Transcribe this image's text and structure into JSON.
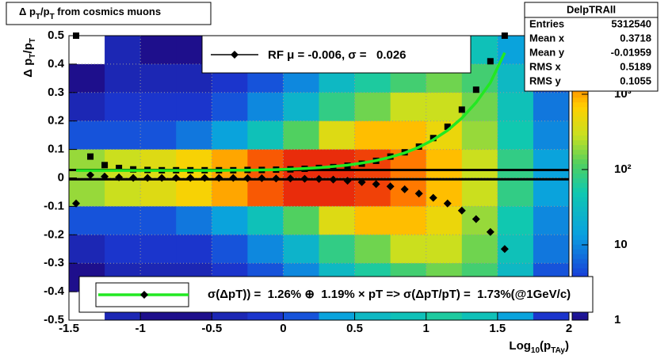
{
  "chart_data": {
    "type": "histogram2d",
    "title": [
      "Δ p",
      "T",
      "/p",
      "T",
      " from cosmics muons"
    ],
    "ylabel": [
      "Δ p",
      "T",
      "/p",
      "T"
    ],
    "xlabel": [
      "Log",
      "10",
      "(p",
      "TAy",
      ")"
    ],
    "xlim": [
      -1.5,
      2
    ],
    "ylim": [
      -0.5,
      0.5
    ],
    "xticks": [
      -1.5,
      -1,
      -0.5,
      0,
      0.5,
      1,
      1.5,
      2
    ],
    "yticks": [
      -0.5,
      -0.4,
      -0.3,
      -0.2,
      -0.1,
      0,
      0.1,
      0.2,
      0.3,
      0.4,
      0.5
    ],
    "grid": true,
    "xbins": [
      -1.5,
      -1.25,
      -1,
      -0.75,
      -0.5,
      -0.25,
      0,
      0.25,
      0.5,
      0.75,
      1,
      1.25,
      1.5,
      1.75,
      2
    ],
    "ybins": [
      -0.5,
      -0.4,
      -0.3,
      -0.2,
      -0.1,
      0,
      0.1,
      0.2,
      0.3,
      0.4,
      0.5
    ],
    "z": [
      [
        0,
        2,
        1,
        1,
        2,
        3,
        5,
        15,
        30,
        40,
        60,
        40,
        15,
        3
      ],
      [
        1,
        2,
        2,
        2,
        3,
        5,
        10,
        30,
        60,
        100,
        150,
        100,
        30,
        5
      ],
      [
        2,
        3,
        3,
        3,
        5,
        10,
        25,
        80,
        150,
        300,
        300,
        150,
        40,
        8
      ],
      [
        5,
        5,
        5,
        8,
        15,
        40,
        120,
        400,
        800,
        800,
        500,
        200,
        50,
        10
      ],
      [
        200,
        300,
        400,
        600,
        1000,
        2000,
        3000,
        3000,
        2500,
        1500,
        800,
        300,
        80,
        15
      ],
      [
        200,
        300,
        400,
        600,
        1000,
        2000,
        3000,
        3000,
        2500,
        1500,
        800,
        300,
        80,
        15
      ],
      [
        5,
        5,
        5,
        8,
        15,
        40,
        120,
        400,
        800,
        800,
        500,
        200,
        50,
        10
      ],
      [
        2,
        3,
        3,
        3,
        5,
        10,
        25,
        80,
        150,
        300,
        300,
        150,
        40,
        8
      ],
      [
        1,
        2,
        2,
        2,
        3,
        5,
        10,
        30,
        60,
        100,
        150,
        100,
        30,
        5
      ],
      [
        0,
        2,
        1,
        1,
        2,
        3,
        5,
        15,
        30,
        40,
        60,
        40,
        15,
        3
      ]
    ],
    "zlim": [
      1,
      6000
    ],
    "log_z": true,
    "zticks": [
      1,
      10,
      {
        "value": 100,
        "label": "10²"
      },
      {
        "value": 1000,
        "label": "10³"
      }
    ],
    "reference_lines": [
      0.028,
      -0.005
    ],
    "x": [
      -1.45,
      -1.35,
      -1.25,
      -1.15,
      -1.05,
      -0.95,
      -0.85,
      -0.75,
      -0.65,
      -0.55,
      -0.45,
      -0.35,
      -0.25,
      -0.15,
      -0.05,
      0.05,
      0.15,
      0.25,
      0.35,
      0.45,
      0.55,
      0.65,
      0.75,
      0.85,
      0.95,
      1.05,
      1.15,
      1.25,
      1.35,
      1.45,
      1.55
    ],
    "series": [
      {
        "marker": "square",
        "color": "#000000",
        "values": [
          0.5,
          0.075,
          0.045,
          0.035,
          0.03,
          0.028,
          0.027,
          0.027,
          0.027,
          0.027,
          0.027,
          0.027,
          0.028,
          0.028,
          0.029,
          0.03,
          0.032,
          0.035,
          0.038,
          0.043,
          0.05,
          0.06,
          0.075,
          0.09,
          0.11,
          0.14,
          0.18,
          0.24,
          0.31,
          0.41,
          0.5
        ]
      },
      {
        "name": "RF μ = -0.006, σ =   0.026",
        "marker": "diamond",
        "color": "#000000",
        "values": [
          -0.09,
          0.01,
          0.005,
          0.002,
          0,
          0,
          0,
          0,
          0,
          0,
          0,
          0,
          -0.001,
          -0.001,
          -0.002,
          -0.002,
          -0.003,
          -0.004,
          -0.006,
          -0.01,
          -0.015,
          -0.022,
          -0.03,
          -0.04,
          -0.055,
          -0.07,
          -0.09,
          -0.115,
          -0.145,
          -0.19,
          -0.25
        ]
      },
      {
        "name": "σ(ΔpT)) =  1.26% ⊕  1.19% × pT => σ(ΔpT/pT) =  1.73%(@1GeV/c)",
        "marker": "line",
        "color": "#22e822",
        "values": [
          0.026,
          0.026,
          0.026,
          0.026,
          0.026,
          0.026,
          0.026,
          0.026,
          0.026,
          0.026,
          0.026,
          0.027,
          0.027,
          0.028,
          0.029,
          0.031,
          0.033,
          0.036,
          0.04,
          0.045,
          0.052,
          0.061,
          0.073,
          0.088,
          0.108,
          0.134,
          0.167,
          0.21,
          0.265,
          0.335,
          0.44
        ]
      }
    ],
    "stats": {
      "title": "DelpTRAll",
      "rows": [
        [
          "Entries",
          5312540
        ],
        [
          "Mean x",
          0.3718
        ],
        [
          "Mean y",
          -0.01959
        ],
        [
          "RMS x",
          0.5189
        ],
        [
          "RMS y",
          0.1055
        ]
      ]
    }
  }
}
